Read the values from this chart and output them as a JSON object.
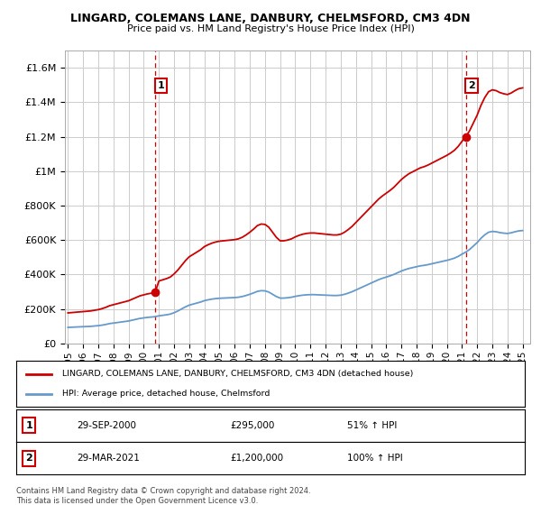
{
  "title": "LINGARD, COLEMANS LANE, DANBURY, CHELMSFORD, CM3 4DN",
  "subtitle": "Price paid vs. HM Land Registry's House Price Index (HPI)",
  "legend_label_red": "LINGARD, COLEMANS LANE, DANBURY, CHELMSFORD, CM3 4DN (detached house)",
  "legend_label_blue": "HPI: Average price, detached house, Chelmsford",
  "annotation1_date": "29-SEP-2000",
  "annotation1_price": "£295,000",
  "annotation1_hpi": "51% ↑ HPI",
  "annotation2_date": "29-MAR-2021",
  "annotation2_price": "£1,200,000",
  "annotation2_hpi": "100% ↑ HPI",
  "footnote": "Contains HM Land Registry data © Crown copyright and database right 2024.\nThis data is licensed under the Open Government Licence v3.0.",
  "ylim": [
    0,
    1700000
  ],
  "yticks": [
    0,
    200000,
    400000,
    600000,
    800000,
    1000000,
    1200000,
    1400000,
    1600000
  ],
  "ytick_labels": [
    "£0",
    "£200K",
    "£400K",
    "£600K",
    "£800K",
    "£1M",
    "£1.2M",
    "£1.4M",
    "£1.6M"
  ],
  "red_color": "#cc0000",
  "blue_color": "#6699cc",
  "vline_color": "#cc0000",
  "background_color": "#ffffff",
  "grid_color": "#cccccc",
  "marker1_x": 2000.75,
  "marker1_y": 295000,
  "marker2_x": 2021.25,
  "marker2_y": 1200000,
  "vline1_x": 2000.75,
  "vline2_x": 2021.25,
  "xmin": 1994.8,
  "xmax": 2025.5,
  "xtick_years": [
    1995,
    1996,
    1997,
    1998,
    1999,
    2000,
    2001,
    2002,
    2003,
    2004,
    2005,
    2006,
    2007,
    2008,
    2009,
    2010,
    2011,
    2012,
    2013,
    2014,
    2015,
    2016,
    2017,
    2018,
    2019,
    2020,
    2021,
    2022,
    2023,
    2024,
    2025
  ]
}
